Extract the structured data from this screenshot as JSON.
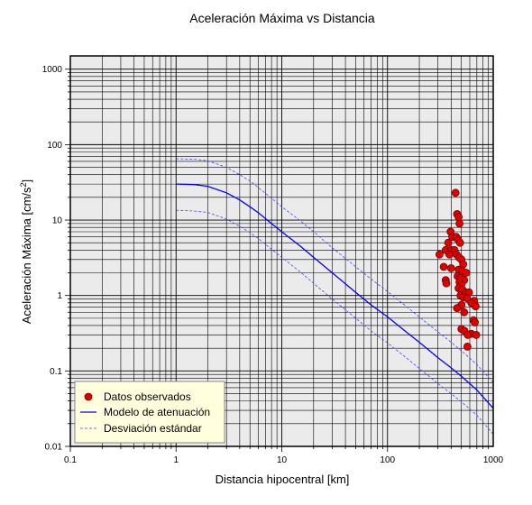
{
  "chart_data": {
    "type": "scatter",
    "title": "Aceleración Máxima vs Distancia",
    "xlabel": "Distancia hipocentral [km]",
    "ylabel_main": "Aceleración Máxima [cm/s",
    "ylabel_sup": "2",
    "ylabel_close": "]",
    "x_scale": "log",
    "y_scale": "log",
    "xlim": [
      0.1,
      1000
    ],
    "ylim": [
      0.01,
      1500
    ],
    "x_ticks": [
      {
        "value": 0.1,
        "label": "0.1"
      },
      {
        "value": 1,
        "label": "1"
      },
      {
        "value": 10,
        "label": "10"
      },
      {
        "value": 100,
        "label": "100"
      },
      {
        "value": 1000,
        "label": "1000"
      }
    ],
    "y_ticks": [
      {
        "value": 0.01,
        "label": "0.01"
      },
      {
        "value": 0.1,
        "label": "0.1"
      },
      {
        "value": 1,
        "label": "1"
      },
      {
        "value": 10,
        "label": "10"
      },
      {
        "value": 100,
        "label": "100"
      },
      {
        "value": 1000,
        "label": "1000"
      }
    ],
    "grid": true,
    "legend_position": "bottom-left",
    "colors": {
      "background": "#ebebeb",
      "grid": "#000000",
      "points": "#e00000",
      "model": "#0000ff",
      "std": "#4444ff",
      "legend_bg": "#ffffdd"
    },
    "legend": [
      {
        "label": "Datos observados",
        "kind": "point"
      },
      {
        "label": "Modelo de atenuación",
        "kind": "solid"
      },
      {
        "label": "Desviación estándar",
        "kind": "dashed"
      }
    ],
    "series": [
      {
        "name": "Datos observados",
        "kind": "points",
        "points": [
          [
            440,
            23
          ],
          [
            455,
            12
          ],
          [
            470,
            11
          ],
          [
            480,
            9
          ],
          [
            395,
            7
          ],
          [
            410,
            6
          ],
          [
            445,
            6
          ],
          [
            465,
            5.5
          ],
          [
            485,
            5
          ],
          [
            375,
            5
          ],
          [
            355,
            4
          ],
          [
            400,
            4
          ],
          [
            430,
            4
          ],
          [
            310,
            3.5
          ],
          [
            385,
            3.5
          ],
          [
            450,
            3.5
          ],
          [
            475,
            3.2
          ],
          [
            500,
            3
          ],
          [
            520,
            2.6
          ],
          [
            340,
            2.4
          ],
          [
            400,
            2.3
          ],
          [
            470,
            2.2
          ],
          [
            510,
            2.1
          ],
          [
            555,
            2
          ],
          [
            460,
            1.8
          ],
          [
            490,
            1.7
          ],
          [
            530,
            1.6
          ],
          [
            355,
            1.6
          ],
          [
            360,
            1.45
          ],
          [
            480,
            1.5
          ],
          [
            500,
            1.4
          ],
          [
            470,
            1.25
          ],
          [
            510,
            1.2
          ],
          [
            545,
            1.1
          ],
          [
            590,
            1.1
          ],
          [
            490,
            1.0
          ],
          [
            520,
            0.95
          ],
          [
            565,
            0.92
          ],
          [
            660,
            0.85
          ],
          [
            620,
            0.8
          ],
          [
            500,
            0.75
          ],
          [
            680,
            0.72
          ],
          [
            455,
            0.68
          ],
          [
            530,
            0.6
          ],
          [
            650,
            0.47
          ],
          [
            670,
            0.44
          ],
          [
            500,
            0.36
          ],
          [
            535,
            0.34
          ],
          [
            620,
            0.31
          ],
          [
            575,
            0.3
          ],
          [
            690,
            0.3
          ],
          [
            570,
            0.21
          ]
        ]
      },
      {
        "name": "Modelo de atenuación",
        "kind": "line",
        "points": [
          [
            1,
            30
          ],
          [
            1.5,
            29.5
          ],
          [
            2,
            28
          ],
          [
            3,
            23
          ],
          [
            4,
            18.5
          ],
          [
            5,
            15
          ],
          [
            6,
            12.5
          ],
          [
            8,
            9
          ],
          [
            10,
            7
          ],
          [
            15,
            4.5
          ],
          [
            20,
            3.2
          ],
          [
            30,
            2.0
          ],
          [
            50,
            1.1
          ],
          [
            70,
            0.75
          ],
          [
            100,
            0.52
          ],
          [
            150,
            0.33
          ],
          [
            200,
            0.24
          ],
          [
            300,
            0.15
          ],
          [
            400,
            0.11
          ],
          [
            500,
            0.085
          ],
          [
            700,
            0.056
          ],
          [
            1000,
            0.032
          ]
        ]
      },
      {
        "name": "Desviación estándar",
        "kind": "dashed",
        "points": [
          [
            1,
            65
          ],
          [
            1.5,
            64
          ],
          [
            2,
            61
          ],
          [
            3,
            50
          ],
          [
            4,
            40
          ],
          [
            5,
            33
          ],
          [
            6,
            27
          ],
          [
            8,
            19.5
          ],
          [
            10,
            15
          ],
          [
            15,
            9.8
          ],
          [
            20,
            7
          ],
          [
            30,
            4.3
          ],
          [
            50,
            2.4
          ],
          [
            70,
            1.65
          ],
          [
            100,
            1.13
          ],
          [
            150,
            0.72
          ],
          [
            200,
            0.52
          ],
          [
            300,
            0.33
          ],
          [
            400,
            0.24
          ],
          [
            500,
            0.185
          ],
          [
            700,
            0.122
          ],
          [
            1000,
            0.07
          ]
        ]
      },
      {
        "name": "Desviación estándar",
        "kind": "dashed",
        "points": [
          [
            1,
            13.5
          ],
          [
            1.5,
            13.2
          ],
          [
            2,
            12.6
          ],
          [
            3,
            10.3
          ],
          [
            4,
            8.3
          ],
          [
            5,
            6.8
          ],
          [
            6,
            5.7
          ],
          [
            8,
            4.1
          ],
          [
            10,
            3.2
          ],
          [
            15,
            2.05
          ],
          [
            20,
            1.45
          ],
          [
            30,
            0.9
          ],
          [
            50,
            0.5
          ],
          [
            70,
            0.34
          ],
          [
            100,
            0.235
          ],
          [
            150,
            0.15
          ],
          [
            200,
            0.108
          ],
          [
            300,
            0.068
          ],
          [
            400,
            0.05
          ],
          [
            500,
            0.039
          ],
          [
            700,
            0.026
          ],
          [
            1000,
            0.0145
          ]
        ]
      }
    ]
  }
}
